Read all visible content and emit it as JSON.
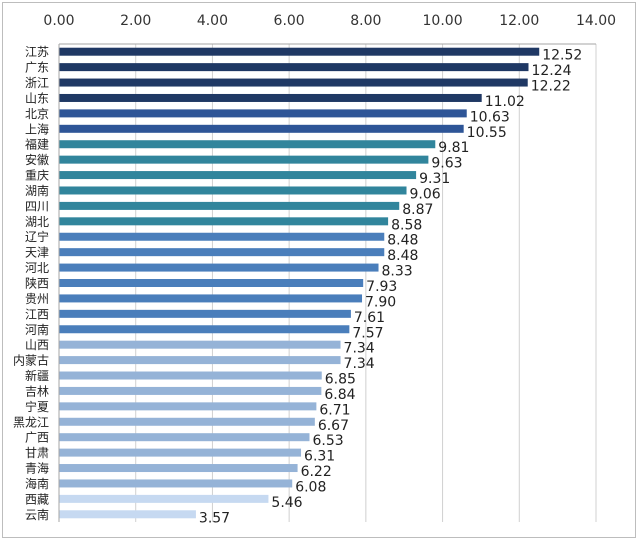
{
  "chart_data": {
    "type": "bar",
    "orientation": "horizontal",
    "title": "",
    "xlabel": "",
    "ylabel": "",
    "xlim": [
      0,
      14
    ],
    "xticks": [
      "0.00",
      "2.00",
      "4.00",
      "6.00",
      "8.00",
      "10.00",
      "12.00",
      "14.00"
    ],
    "x_axis_position": "top",
    "grid": true,
    "legend": "none",
    "categories": [
      "江苏",
      "广东",
      "浙江",
      "山东",
      "北京",
      "上海",
      "福建",
      "安徽",
      "重庆",
      "湖南",
      "四川",
      "湖北",
      "辽宁",
      "天津",
      "河北",
      "陕西",
      "贵州",
      "江西",
      "河南",
      "山西",
      "内蒙古",
      "新疆",
      "吉林",
      "宁夏",
      "黑龙江",
      "广西",
      "甘肃",
      "青海",
      "海南",
      "西藏",
      "云南"
    ],
    "values": [
      12.52,
      12.24,
      12.22,
      11.02,
      10.63,
      10.55,
      9.81,
      9.63,
      9.31,
      9.06,
      8.87,
      8.58,
      8.48,
      8.48,
      8.33,
      7.93,
      7.9,
      7.61,
      7.57,
      7.34,
      7.34,
      6.85,
      6.84,
      6.71,
      6.67,
      6.53,
      6.31,
      6.22,
      6.08,
      5.46,
      3.57
    ],
    "value_labels": [
      "12.52",
      "12.24",
      "12.22",
      "11.02",
      "10.63",
      "10.55",
      "9.81",
      "9.63",
      "9.31",
      "9.06",
      "8.87",
      "8.58",
      "8.48",
      "8.48",
      "8.33",
      "7.93",
      "7.90",
      "7.61",
      "7.57",
      "7.34",
      "7.34",
      "6.85",
      "6.84",
      "6.71",
      "6.67",
      "6.53",
      "6.31",
      "6.22",
      "6.08",
      "5.46",
      "3.57"
    ],
    "bar_colors": [
      "#1f3864",
      "#1f3864",
      "#1f3864",
      "#1f3864",
      "#2e5597",
      "#2e5597",
      "#31859c",
      "#31859c",
      "#31859c",
      "#31859c",
      "#31859c",
      "#31859c",
      "#4a7ebb",
      "#4a7ebb",
      "#4a7ebb",
      "#4a7ebb",
      "#4a7ebb",
      "#4a7ebb",
      "#4a7ebb",
      "#95b3d7",
      "#95b3d7",
      "#95b3d7",
      "#95b3d7",
      "#95b3d7",
      "#95b3d7",
      "#95b3d7",
      "#95b3d7",
      "#95b3d7",
      "#95b3d7",
      "#c6d9f1",
      "#c6d9f1"
    ]
  }
}
